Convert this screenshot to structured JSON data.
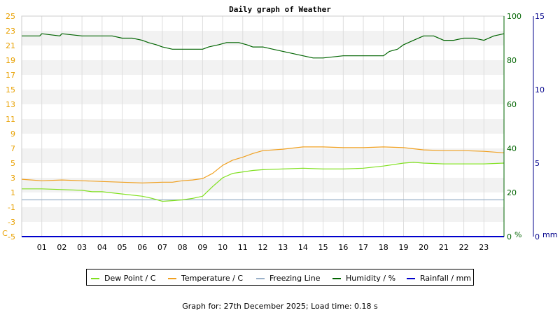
{
  "chart_data": {
    "type": "line",
    "title": "Daily graph of Weather",
    "x_ticks": [
      "01",
      "02",
      "03",
      "04",
      "05",
      "06",
      "07",
      "08",
      "09",
      "10",
      "11",
      "12",
      "13",
      "14",
      "15",
      "16",
      "17",
      "18",
      "19",
      "20",
      "21",
      "22",
      "23"
    ],
    "x_range": [
      0,
      24
    ],
    "axes": {
      "left": {
        "unit_label": "C",
        "range": [
          -5,
          25
        ],
        "ticks": [
          "-5",
          "-3",
          "-1",
          "1",
          "3",
          "5",
          "7",
          "9",
          "11",
          "13",
          "15",
          "17",
          "19",
          "21",
          "23",
          "25"
        ],
        "color": "#e8a000"
      },
      "humidity": {
        "unit_label": "%",
        "range": [
          0,
          100
        ],
        "ticks": [
          "0",
          "20",
          "40",
          "60",
          "80",
          "100"
        ],
        "color": "#006400"
      },
      "rainfall": {
        "unit_label": "mm",
        "range": [
          0,
          15
        ],
        "ticks": [
          "0",
          "5",
          "10",
          "15"
        ],
        "color": "#00008b"
      }
    },
    "grid": true,
    "legend_position": "bottom",
    "series": [
      {
        "name": "Dew Point / C",
        "axis": "left",
        "color": "#80e020",
        "x": [
          0,
          1,
          2,
          3,
          3.5,
          4,
          5,
          6,
          6.5,
          7,
          7.5,
          8,
          8.5,
          9,
          9.5,
          10,
          10.5,
          11,
          11.5,
          12,
          13,
          14,
          15,
          16,
          17,
          18,
          19,
          19.5,
          20,
          21,
          22,
          23,
          24
        ],
        "y": [
          1.5,
          1.5,
          1.4,
          1.3,
          1.1,
          1.1,
          0.8,
          0.5,
          0.2,
          -0.2,
          -0.1,
          0.0,
          0.2,
          0.5,
          1.8,
          3.0,
          3.6,
          3.8,
          4.0,
          4.1,
          4.2,
          4.3,
          4.2,
          4.2,
          4.3,
          4.6,
          5.0,
          5.1,
          5.0,
          4.9,
          4.9,
          4.9,
          5.0
        ]
      },
      {
        "name": "Temperature / C",
        "axis": "left",
        "color": "#f0a020",
        "x": [
          0,
          1,
          2,
          3,
          4,
          5,
          6,
          7,
          7.5,
          8,
          8.5,
          9,
          9.5,
          10,
          10.5,
          11,
          11.5,
          12,
          13,
          14,
          15,
          16,
          17,
          18,
          19,
          20,
          21,
          22,
          23,
          24
        ],
        "y": [
          2.8,
          2.6,
          2.7,
          2.6,
          2.5,
          2.4,
          2.3,
          2.4,
          2.4,
          2.6,
          2.7,
          2.9,
          3.6,
          4.7,
          5.4,
          5.8,
          6.3,
          6.7,
          6.9,
          7.2,
          7.2,
          7.1,
          7.1,
          7.2,
          7.1,
          6.8,
          6.7,
          6.7,
          6.6,
          6.4
        ]
      },
      {
        "name": "Freezing Line",
        "axis": "left",
        "color": "#9ab0c8",
        "x": [
          0,
          24
        ],
        "y": [
          0,
          0
        ]
      },
      {
        "name": "Humidity / %",
        "axis": "humidity",
        "color": "#006400",
        "x": [
          0,
          0.9,
          1.0,
          1.9,
          2.0,
          3,
          4,
          4.5,
          5.0,
          5.5,
          6.0,
          6.3,
          6.7,
          7.0,
          7.5,
          8.0,
          8.5,
          9.0,
          9.3,
          9.8,
          10.2,
          10.8,
          11.2,
          11.5,
          12.0,
          12.5,
          13.0,
          13.5,
          14.0,
          14.5,
          15.0,
          16.0,
          17.0,
          17.5,
          18.0,
          18.3,
          18.7,
          19.0,
          19.5,
          20.0,
          20.5,
          21.0,
          21.5,
          22.0,
          22.5,
          23.0,
          23.5,
          24.0
        ],
        "y": [
          91,
          91,
          92,
          91,
          92,
          91,
          91,
          91,
          90,
          90,
          89,
          88,
          87,
          86,
          85,
          85,
          85,
          85,
          86,
          87,
          88,
          88,
          87,
          86,
          86,
          85,
          84,
          83,
          82,
          81,
          81,
          82,
          82,
          82,
          82,
          84,
          85,
          87,
          89,
          91,
          91,
          89,
          89,
          90,
          90,
          89,
          91,
          92
        ]
      },
      {
        "name": "Rainfall / mm",
        "axis": "rainfall",
        "color": "#0000cc",
        "x": [
          0,
          24
        ],
        "y": [
          0,
          0
        ]
      }
    ]
  },
  "footer": {
    "text": "Graph for: 27th December 2025; Load time: 0.18 s"
  }
}
